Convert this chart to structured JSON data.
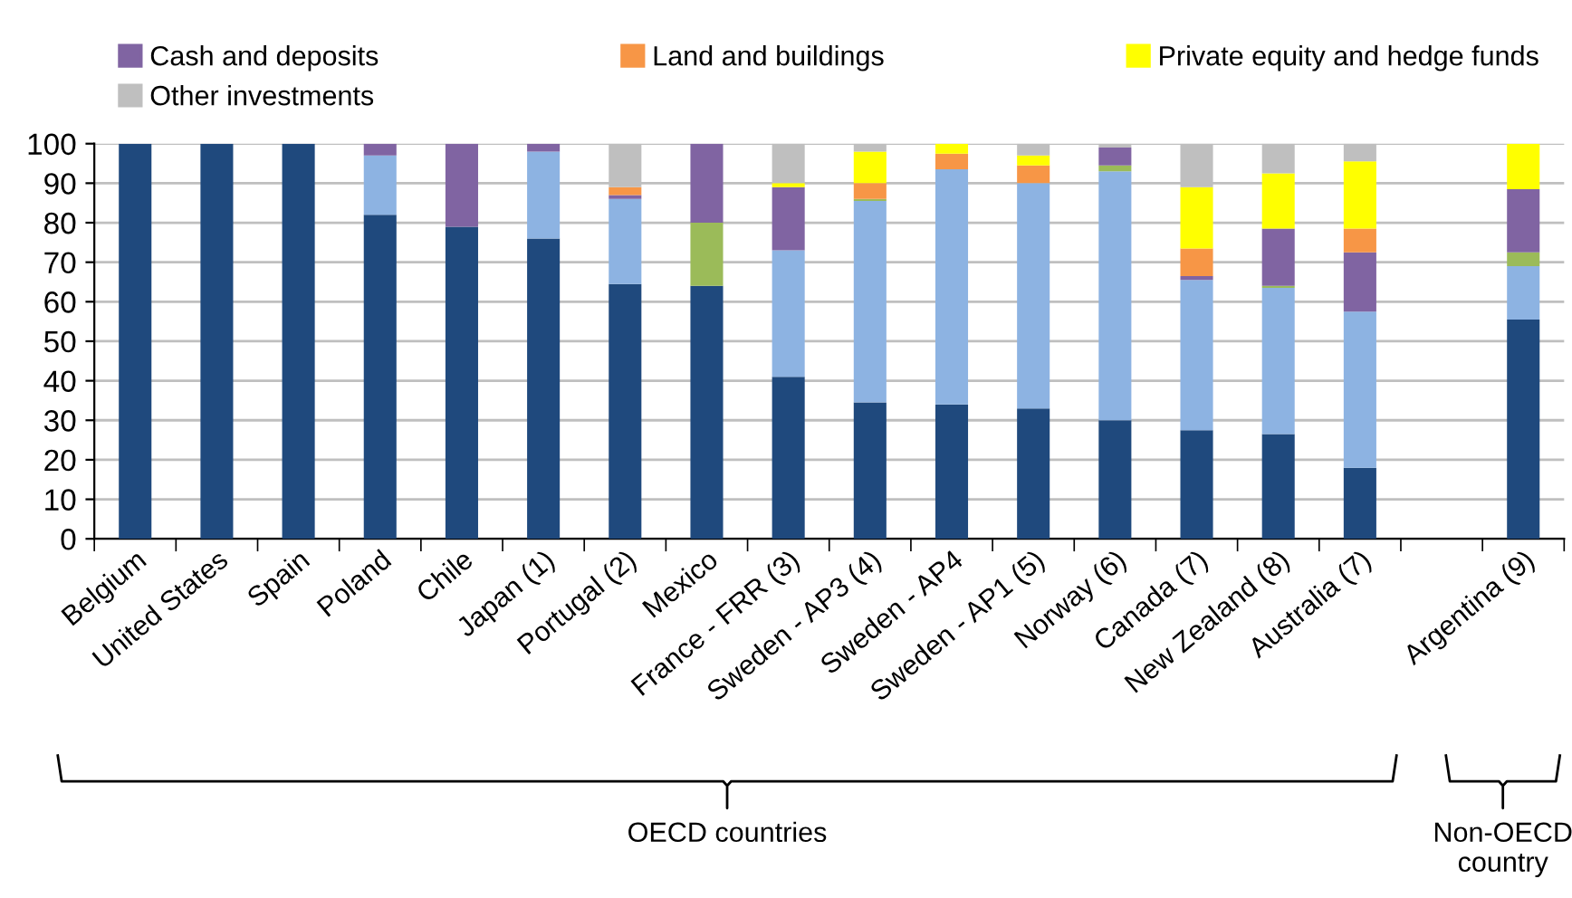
{
  "chart_data": {
    "type": "bar",
    "stacked": true,
    "categories": [
      "Belgium",
      "United States",
      "Spain",
      "Poland",
      "Chile",
      "Japan (1)",
      "Portugal (2)",
      "Mexico",
      "France - FRR (3)",
      "Sweden - AP3 (4)",
      "Sweden - AP4",
      "Sweden - AP1 (5)",
      "Norway (6)",
      "Canada (7)",
      "New Zealand (8)",
      "Australia (7)",
      null,
      "Argentina (9)"
    ],
    "series": [
      {
        "color": "#1f497d",
        "values": [
          100,
          100,
          100,
          82,
          79,
          76,
          64.5,
          64,
          41,
          34.5,
          34,
          33,
          30,
          27.5,
          26.5,
          18,
          null,
          55.5
        ]
      },
      {
        "color": "#8db3e2",
        "values": [
          0,
          0,
          0,
          15,
          0,
          22,
          21.5,
          0,
          32,
          51,
          59.5,
          57,
          63,
          38,
          37,
          39.5,
          null,
          13.5
        ]
      },
      {
        "color": "#9bbb59",
        "values": [
          0,
          0,
          0,
          0,
          0,
          0,
          0,
          16,
          0,
          0.5,
          0,
          0,
          1.5,
          0,
          0.5,
          0,
          null,
          3.5
        ]
      },
      {
        "name": "Cash and deposits",
        "color": "#8064a2",
        "values": [
          0,
          0,
          0,
          3,
          21,
          2,
          1,
          20,
          16,
          0,
          0,
          0,
          4.5,
          1,
          14.5,
          15,
          null,
          16
        ]
      },
      {
        "name": "Land and buildings",
        "color": "#f79646",
        "values": [
          0,
          0,
          0,
          0,
          0,
          0,
          2,
          0,
          0,
          4,
          4,
          4.5,
          0,
          7,
          0,
          6,
          null,
          0
        ]
      },
      {
        "name": "Private equity and hedge funds",
        "color": "#ffff00",
        "values": [
          0,
          0,
          0,
          0,
          0,
          0,
          0,
          0,
          1,
          8,
          2.5,
          2.5,
          0,
          15.5,
          14,
          17,
          null,
          11.5
        ]
      },
      {
        "name": "Other investments",
        "color": "#bfbfbf",
        "values": [
          0,
          0,
          0,
          0,
          0,
          0,
          11,
          0,
          10,
          2,
          0,
          3,
          1,
          11,
          7.5,
          4.5,
          null,
          0
        ]
      }
    ],
    "ylim": [
      0,
      100
    ],
    "yticks": [
      0,
      10,
      20,
      30,
      40,
      50,
      60,
      70,
      80,
      90,
      100
    ],
    "grid": "y",
    "legend": "top",
    "annotations": [
      "OECD countries",
      "Non-OECD\ncountry"
    ]
  }
}
